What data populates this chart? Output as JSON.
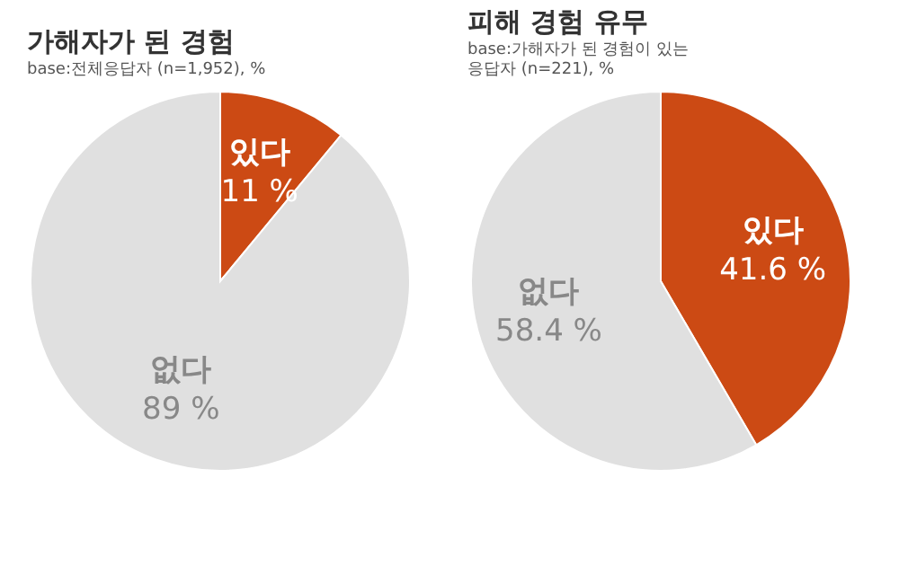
{
  "chart_data": [
    {
      "type": "pie",
      "title": "가해자가 된 경험",
      "subtitle": "base:전체응답자 (n=1,952), %",
      "categories": [
        "있다",
        "없다"
      ],
      "values": [
        11,
        89
      ],
      "value_labels": [
        "11 %",
        "89 %"
      ],
      "colors": [
        "#cc4a14",
        "#e0e0e0"
      ]
    },
    {
      "type": "pie",
      "title": "피해 경험 유무",
      "subtitle": "base:가해자가 된 경험이 있는\n응답자 (n=221), %",
      "categories": [
        "있다",
        "없다"
      ],
      "values": [
        41.6,
        58.4
      ],
      "value_labels": [
        "41.6 %",
        "58.4 %"
      ],
      "colors": [
        "#cc4a14",
        "#e0e0e0"
      ]
    }
  ]
}
